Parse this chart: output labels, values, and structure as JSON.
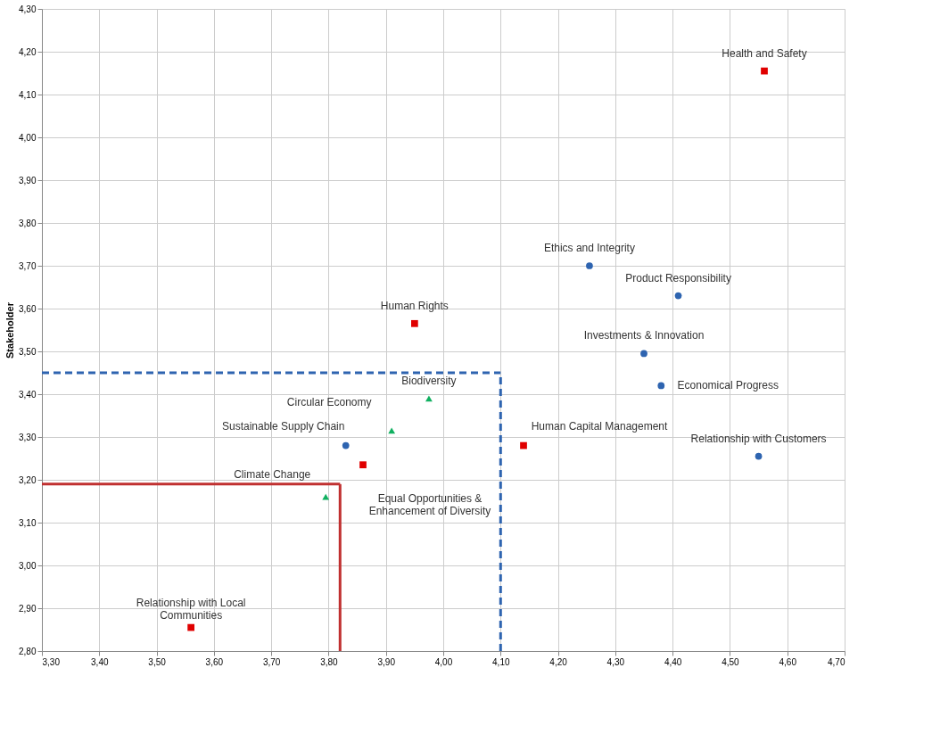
{
  "chart_data": {
    "type": "scatter",
    "ylabel": "Stakeholder",
    "xlim": [
      3.3,
      4.7
    ],
    "ylim": [
      2.8,
      4.3
    ],
    "xticks": [
      {
        "value": 3.3,
        "label": "3,30"
      },
      {
        "value": 3.4,
        "label": "3,40"
      },
      {
        "value": 3.5,
        "label": "3,50"
      },
      {
        "value": 3.6,
        "label": "3,60"
      },
      {
        "value": 3.7,
        "label": "3,70"
      },
      {
        "value": 3.8,
        "label": "3,80"
      },
      {
        "value": 3.9,
        "label": "3,90"
      },
      {
        "value": 4.0,
        "label": "4,00"
      },
      {
        "value": 4.1,
        "label": "4,10"
      },
      {
        "value": 4.2,
        "label": "4,20"
      },
      {
        "value": 4.3,
        "label": "4,30"
      },
      {
        "value": 4.4,
        "label": "4,40"
      },
      {
        "value": 4.5,
        "label": "4,50"
      },
      {
        "value": 4.6,
        "label": "4,60"
      },
      {
        "value": 4.7,
        "label": "4,70"
      }
    ],
    "yticks": [
      {
        "value": 2.8,
        "label": "2,80"
      },
      {
        "value": 2.9,
        "label": "2,90"
      },
      {
        "value": 3.0,
        "label": "3,00"
      },
      {
        "value": 3.1,
        "label": "3,10"
      },
      {
        "value": 3.2,
        "label": "3,20"
      },
      {
        "value": 3.3,
        "label": "3,30"
      },
      {
        "value": 3.4,
        "label": "3,40"
      },
      {
        "value": 3.5,
        "label": "3,50"
      },
      {
        "value": 3.6,
        "label": "3,60"
      },
      {
        "value": 3.7,
        "label": "3,70"
      },
      {
        "value": 3.8,
        "label": "3,80"
      },
      {
        "value": 3.9,
        "label": "3,90"
      },
      {
        "value": 4.0,
        "label": "4,00"
      },
      {
        "value": 4.1,
        "label": "4,10"
      },
      {
        "value": 4.2,
        "label": "4,20"
      },
      {
        "value": 4.3,
        "label": "4,30"
      }
    ],
    "grid": true,
    "series": [
      {
        "color": "#e00000",
        "marker": "square",
        "x": [
          4.56,
          3.95,
          4.14,
          3.86,
          3.56
        ],
        "values": [
          4.155,
          3.565,
          3.28,
          3.235,
          2.855
        ]
      },
      {
        "color": "#2e64b0",
        "marker": "circle",
        "x": [
          4.255,
          4.41,
          4.35,
          4.38,
          4.55,
          3.83
        ],
        "values": [
          3.7,
          3.63,
          3.495,
          3.42,
          3.255,
          3.28
        ]
      },
      {
        "color": "#10b060",
        "marker": "triangle",
        "x": [
          3.975,
          3.91,
          3.795
        ],
        "values": [
          3.39,
          3.315,
          3.16
        ]
      }
    ],
    "annotations": [
      {
        "text": "Health and Safety",
        "x": 4.56,
        "y": 4.155
      },
      {
        "text": "Human Rights",
        "x": 3.95,
        "y": 3.565
      },
      {
        "text": "Human Capital Management",
        "x": 4.14,
        "y": 3.28
      },
      {
        "text": "Equal Opportunities &\nEnhancement of Diversity",
        "x": 3.86,
        "y": 3.235
      },
      {
        "text": "Relationship with Local\nCommunities",
        "x": 3.56,
        "y": 2.855
      },
      {
        "text": "Ethics and Integrity",
        "x": 4.255,
        "y": 3.7
      },
      {
        "text": "Product Responsibility",
        "x": 4.41,
        "y": 3.63
      },
      {
        "text": "Investments & Innovation",
        "x": 4.35,
        "y": 3.495
      },
      {
        "text": "Economical Progress",
        "x": 4.38,
        "y": 3.42
      },
      {
        "text": "Relationship with Customers",
        "x": 4.55,
        "y": 3.255
      },
      {
        "text": "Sustainable Supply Chain",
        "x": 3.83,
        "y": 3.28
      },
      {
        "text": "Biodiversity",
        "x": 3.975,
        "y": 3.39
      },
      {
        "text": "Circular Economy",
        "x": 3.91,
        "y": 3.315
      },
      {
        "text": "Climate Change",
        "x": 3.795,
        "y": 3.16
      }
    ],
    "ref_lines": [
      {
        "axis": "x",
        "value": 4.1,
        "color": "#2e64b0",
        "line_style": "dashed"
      },
      {
        "axis": "y",
        "value": 3.45,
        "color": "#2e64b0",
        "line_style": "dashed"
      },
      {
        "axis": "x",
        "value": 3.82,
        "color": "#c03030",
        "line_style": "solid"
      },
      {
        "axis": "y",
        "value": 3.19,
        "color": "#c03030",
        "line_style": "solid"
      }
    ]
  }
}
